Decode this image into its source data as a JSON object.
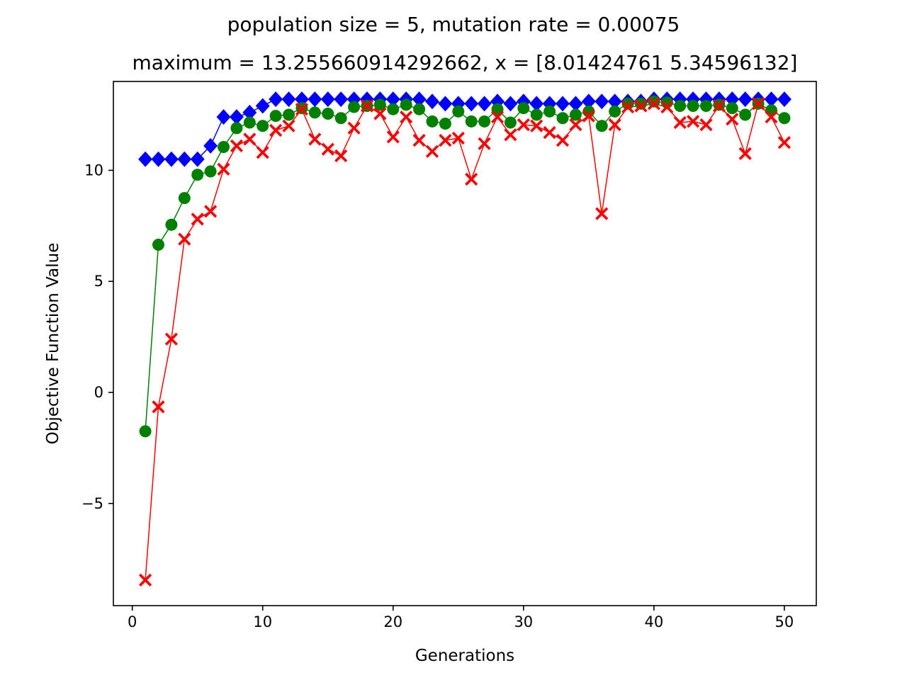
{
  "chart_data": {
    "type": "line",
    "title": "population size = 5, mutation rate = 0.00075",
    "subtitle": "maximum = 13.255660914292662, x = [8.01424761 5.34596132]",
    "xlabel": "Generations",
    "ylabel": "Objective Function Value",
    "xlim": [
      -1.45,
      52.45
    ],
    "ylim": [
      -9.6,
      14.0
    ],
    "xticks": [
      0,
      10,
      20,
      30,
      40,
      50
    ],
    "xtick_labels": [
      "0",
      "10",
      "20",
      "30",
      "40",
      "50"
    ],
    "yticks": [
      -5,
      0,
      5,
      10
    ],
    "ytick_labels": [
      "−5",
      "0",
      "5",
      "10"
    ],
    "grid": false,
    "legend": "none",
    "x": [
      1,
      2,
      3,
      4,
      5,
      6,
      7,
      8,
      9,
      10,
      11,
      12,
      13,
      14,
      15,
      16,
      17,
      18,
      19,
      20,
      21,
      22,
      23,
      24,
      25,
      26,
      27,
      28,
      29,
      30,
      31,
      32,
      33,
      34,
      35,
      36,
      37,
      38,
      39,
      40,
      41,
      42,
      43,
      44,
      45,
      46,
      47,
      48,
      49,
      50
    ],
    "series": [
      {
        "color": "#0000ff",
        "marker": "diamond",
        "values": [
          10.5,
          10.5,
          10.5,
          10.5,
          10.5,
          11.1,
          12.4,
          12.4,
          12.6,
          12.9,
          13.2,
          13.2,
          13.2,
          13.2,
          13.2,
          13.2,
          13.2,
          13.2,
          13.2,
          13.2,
          13.2,
          13.2,
          13.1,
          13.0,
          13.0,
          13.0,
          13.0,
          13.1,
          13.0,
          13.1,
          13.0,
          13.0,
          13.0,
          13.0,
          13.1,
          13.1,
          13.1,
          13.1,
          13.1,
          13.2,
          13.2,
          13.2,
          13.2,
          13.2,
          13.2,
          13.2,
          13.2,
          13.2,
          13.2,
          13.2
        ]
      },
      {
        "color": "#008000",
        "marker": "circle",
        "values": [
          -1.75,
          6.65,
          7.55,
          8.75,
          9.8,
          9.95,
          11.05,
          11.9,
          12.15,
          12.0,
          12.45,
          12.5,
          12.8,
          12.6,
          12.55,
          12.35,
          12.85,
          12.9,
          12.95,
          12.75,
          12.95,
          12.75,
          12.2,
          12.1,
          12.65,
          12.2,
          12.2,
          12.75,
          12.15,
          12.8,
          12.5,
          12.65,
          12.35,
          12.5,
          12.65,
          12.0,
          12.65,
          13.0,
          13.0,
          13.1,
          13.05,
          12.9,
          12.9,
          12.9,
          12.95,
          12.8,
          12.5,
          13.0,
          12.7,
          12.35
        ]
      },
      {
        "color": "#ff0000",
        "marker": "x",
        "values": [
          -8.45,
          -0.65,
          2.4,
          6.9,
          7.8,
          8.15,
          10.05,
          11.1,
          11.4,
          10.8,
          11.8,
          12.0,
          12.75,
          11.4,
          10.95,
          10.65,
          11.9,
          12.9,
          12.55,
          11.5,
          12.4,
          11.35,
          10.85,
          11.35,
          11.45,
          9.6,
          11.2,
          12.4,
          11.6,
          12.05,
          12.0,
          11.7,
          11.35,
          12.05,
          12.45,
          8.05,
          12.05,
          12.85,
          12.9,
          13.0,
          12.85,
          12.15,
          12.2,
          12.05,
          12.9,
          12.3,
          10.75,
          13.0,
          12.4,
          11.25
        ]
      }
    ]
  }
}
